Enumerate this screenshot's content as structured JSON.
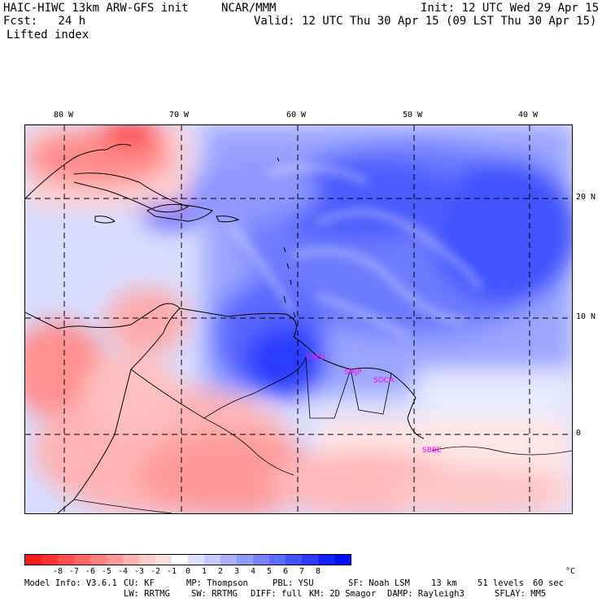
{
  "header": {
    "model": "HAIC-HIWC 13km ARW-GFS init",
    "org": "NCAR/MMM",
    "init": "Init: 12 UTC Wed 29 Apr 15",
    "forecast": "Fcst:   24 h",
    "valid": "Valid: 12 UTC Thu 30 Apr 15 (09 LST Thu 30 Apr 15)",
    "field": "Lifted index"
  },
  "map": {
    "longitude_labels": [
      "80 W",
      "70 W",
      "60 W",
      "50 W",
      "40 W"
    ],
    "latitude_labels": [
      "20 N",
      "10 N",
      "0"
    ],
    "site_labels": [
      "STEU",
      "SMJP",
      "SOCA",
      "SBBE"
    ],
    "site_color": "#ff00ff",
    "gridline_style": "dashed",
    "coastline_color": "#000000"
  },
  "colorbar": {
    "colors": [
      "#ff1a1a",
      "#ff3333",
      "#ff4d4d",
      "#ff6666",
      "#ff8080",
      "#ff9999",
      "#ffb3b3",
      "#ffcccc",
      "#ffe0e0",
      "#ffffff",
      "#dde2ff",
      "#c4ccff",
      "#aab3ff",
      "#919bff",
      "#7883ff",
      "#5f6cff",
      "#4653ff",
      "#2d3bff",
      "#1424ff",
      "#0010ff"
    ],
    "ticks": [
      "-8",
      "-7",
      "-6",
      "-5",
      "-4",
      "-3",
      "-2",
      "-1",
      "0",
      "1",
      "2",
      "3",
      "4",
      "5",
      "6",
      "7",
      "8"
    ],
    "unit": "°C"
  },
  "footer": {
    "line1": [
      "Model Info: V3.6.1",
      "CU: KF",
      "MP: Thompson",
      "PBL: YSU",
      "SF: Noah LSM",
      "13 km",
      "51 levels",
      "60 sec"
    ],
    "line2": [
      "LW: RRTMG",
      "SW: RRTMG",
      "DIFF: full",
      "KM: 2D Smagor",
      "DAMP: Rayleigh3",
      "SFLAY: MM5"
    ]
  }
}
